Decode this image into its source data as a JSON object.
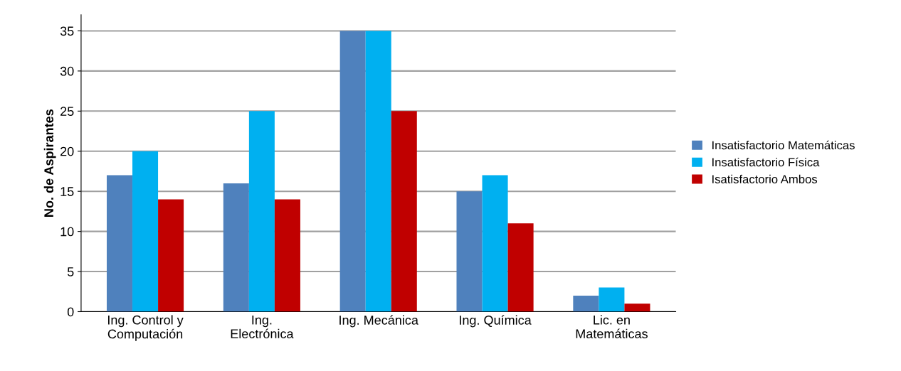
{
  "chart_data": {
    "type": "bar",
    "ylabel": "No. de Aspirantes",
    "categories": [
      "Ing. Control y\nComputación",
      "Ing.\nElectrónica",
      "Ing. Mecánica",
      "Ing. Química",
      "Lic. en\nMatemáticas"
    ],
    "series": [
      {
        "name": "Insatisfactorio Matemáticas",
        "color": "#4f81bd",
        "values": [
          17,
          16,
          35,
          15,
          2
        ]
      },
      {
        "name": "Insatisfactorio Física",
        "color": "#00b0f0",
        "values": [
          20,
          25,
          35,
          17,
          3
        ]
      },
      {
        "name": "Isatisfactorio Ambos",
        "color": "#c00000",
        "values": [
          14,
          14,
          25,
          11,
          1
        ]
      }
    ],
    "ylim": [
      0,
      37
    ],
    "yticks": [
      0,
      5,
      10,
      15,
      20,
      25,
      30,
      35
    ],
    "grid": "y",
    "legend": "right"
  }
}
